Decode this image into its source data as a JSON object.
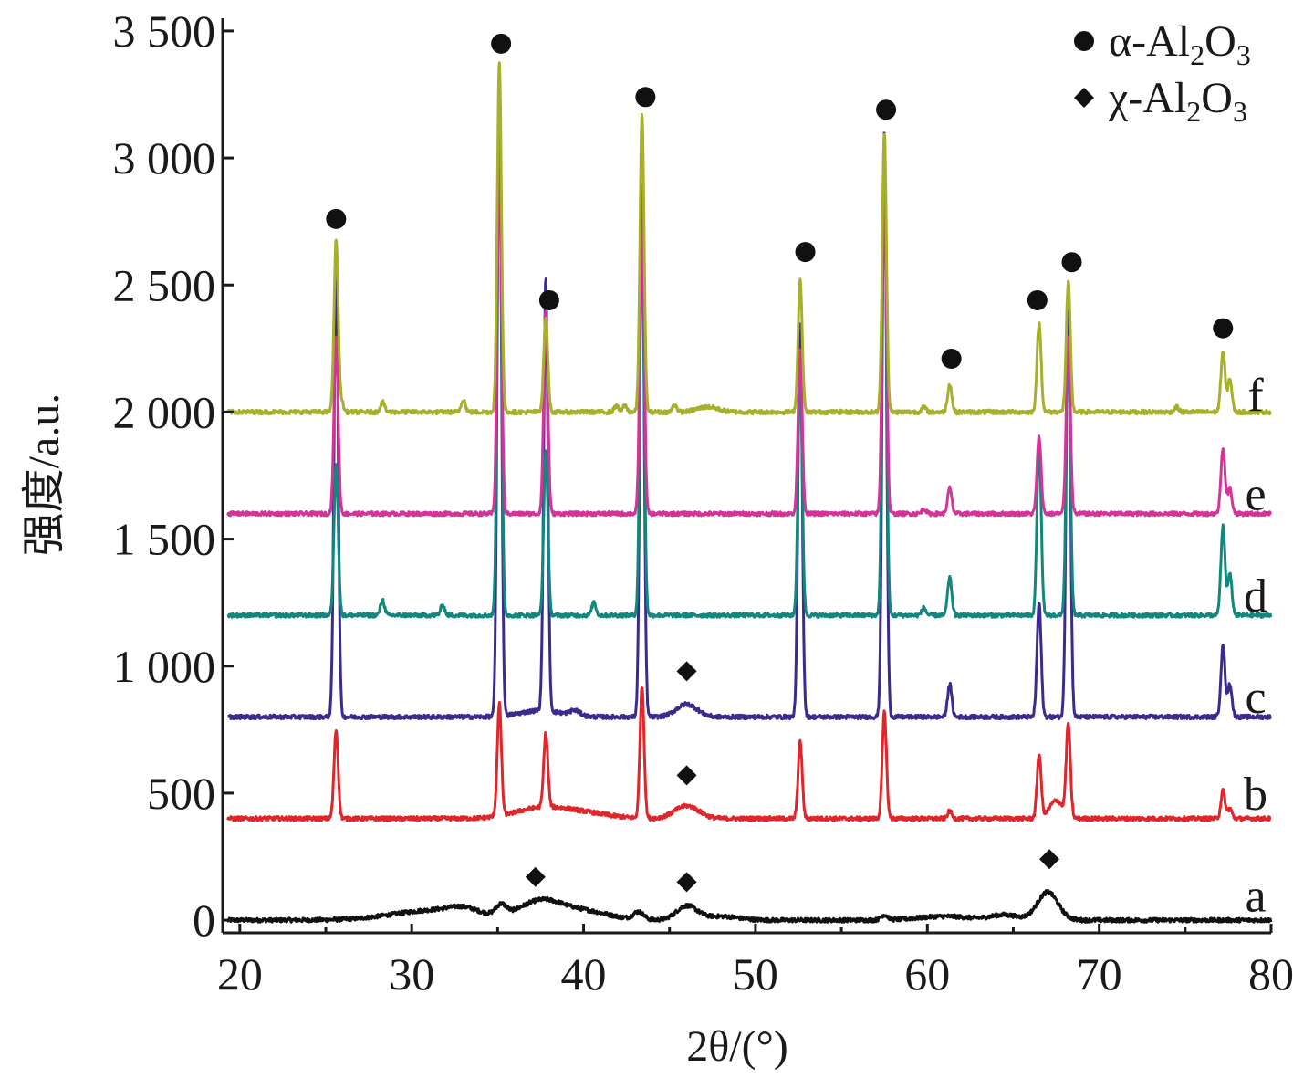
{
  "chart_data": {
    "type": "line",
    "xlabel": "2θ/(°)",
    "ylabel": "强度/a.u.",
    "xlim": [
      19,
      80
    ],
    "ylim": [
      -50,
      3550
    ],
    "x_ticks": [
      20,
      30,
      40,
      50,
      60,
      70,
      80
    ],
    "x_tick_labels": [
      "20",
      "30",
      "40",
      "50",
      "60",
      "70",
      "80"
    ],
    "y_ticks": [
      0,
      500,
      1000,
      1500,
      2000,
      2500,
      3000,
      3500
    ],
    "y_tick_labels": [
      "0",
      "500",
      "1 000",
      "1 500",
      "2 000",
      "2 500",
      "3 000",
      "3 500"
    ],
    "grid": false,
    "legend": {
      "placement": "top-right",
      "entries": [
        {
          "marker": "circle",
          "label_main": "α-Al",
          "label_sub": "2",
          "label_mid": "O",
          "label_sub2": "3"
        },
        {
          "marker": "diamond",
          "label_main": "χ-Al",
          "label_sub": "2",
          "label_mid": "O",
          "label_sub2": "3"
        }
      ]
    },
    "series": [
      {
        "name": "a",
        "color": "#111111",
        "baseline": 0,
        "label_y": 100,
        "peaks": [
          [
            31.5,
            40,
            2.5
          ],
          [
            33,
            20,
            0.8
          ],
          [
            35.2,
            40,
            0.3
          ],
          [
            37.5,
            70,
            1.2
          ],
          [
            40,
            35,
            1.5
          ],
          [
            43.2,
            30,
            0.3
          ],
          [
            46,
            55,
            0.6
          ],
          [
            48,
            15,
            1
          ],
          [
            57.5,
            20,
            0.2
          ],
          [
            61,
            15,
            1.5
          ],
          [
            64.5,
            20,
            0.8
          ],
          [
            67,
            110,
            0.6
          ]
        ]
      },
      {
        "name": "b",
        "color": "#e0262a",
        "baseline": 400,
        "label_y": 500,
        "peaks": [
          [
            25.6,
            350,
            0.12
          ],
          [
            35.1,
            440,
            0.12
          ],
          [
            37.8,
            290,
            0.12
          ],
          [
            43.4,
            520,
            0.12
          ],
          [
            52.6,
            300,
            0.12
          ],
          [
            57.5,
            420,
            0.12
          ],
          [
            61.3,
            30,
            0.12
          ],
          [
            66.5,
            250,
            0.12
          ],
          [
            67.5,
            70,
            0.4
          ],
          [
            68.2,
            360,
            0.12
          ],
          [
            77.2,
            110,
            0.12
          ],
          [
            77.6,
            40,
            0.12
          ],
          [
            37.5,
            40,
            1.5
          ],
          [
            46,
            50,
            0.7
          ],
          [
            40,
            20,
            1.5
          ]
        ]
      },
      {
        "name": "c",
        "color": "#3c2b8f",
        "baseline": 800,
        "label_y": 880,
        "peaks": [
          [
            25.6,
            1800,
            0.12
          ],
          [
            35.1,
            2450,
            0.12
          ],
          [
            37.8,
            1700,
            0.12
          ],
          [
            43.4,
            2100,
            0.12
          ],
          [
            52.6,
            1550,
            0.12
          ],
          [
            57.5,
            2300,
            0.12
          ],
          [
            61.3,
            130,
            0.12
          ],
          [
            66.5,
            450,
            0.12
          ],
          [
            68.2,
            1700,
            0.12
          ],
          [
            77.2,
            280,
            0.12
          ],
          [
            77.6,
            130,
            0.12
          ],
          [
            46,
            50,
            0.6
          ],
          [
            37.5,
            25,
            1.2
          ],
          [
            39.5,
            20,
            0.3
          ]
        ]
      },
      {
        "name": "d",
        "color": "#11877d",
        "baseline": 1200,
        "label_y": 1280,
        "peaks": [
          [
            25.6,
            600,
            0.12
          ],
          [
            28.3,
            60,
            0.12
          ],
          [
            31.8,
            40,
            0.12
          ],
          [
            35.1,
            2000,
            0.12
          ],
          [
            37.8,
            650,
            0.12
          ],
          [
            40.6,
            50,
            0.12
          ],
          [
            43.4,
            1600,
            0.12
          ],
          [
            52.6,
            1000,
            0.12
          ],
          [
            57.5,
            1800,
            0.12
          ],
          [
            59.8,
            30,
            0.12
          ],
          [
            61.3,
            150,
            0.12
          ],
          [
            66.5,
            700,
            0.12
          ],
          [
            68.2,
            1100,
            0.12
          ],
          [
            77.2,
            350,
            0.12
          ],
          [
            77.6,
            160,
            0.12
          ]
        ]
      },
      {
        "name": "e",
        "color": "#d4349a",
        "baseline": 1600,
        "label_y": 1680,
        "peaks": [
          [
            25.6,
            700,
            0.12
          ],
          [
            35.1,
            1500,
            0.12
          ],
          [
            37.8,
            800,
            0.12
          ],
          [
            43.4,
            1300,
            0.12
          ],
          [
            52.6,
            650,
            0.12
          ],
          [
            57.5,
            1400,
            0.12
          ],
          [
            59.8,
            20,
            0.12
          ],
          [
            61.3,
            100,
            0.12
          ],
          [
            66.5,
            300,
            0.12
          ],
          [
            68.2,
            700,
            0.12
          ],
          [
            77.2,
            260,
            0.12
          ],
          [
            77.6,
            100,
            0.12
          ]
        ]
      },
      {
        "name": "f",
        "color": "#a6b02a",
        "baseline": 2000,
        "label_y": 2070,
        "peaks": [
          [
            25.6,
            680,
            0.12
          ],
          [
            25.9,
            40,
            0.12
          ],
          [
            28.3,
            40,
            0.12
          ],
          [
            33,
            50,
            0.12
          ],
          [
            35.1,
            1380,
            0.12
          ],
          [
            37.8,
            370,
            0.12
          ],
          [
            41.9,
            25,
            0.12
          ],
          [
            42.4,
            25,
            0.12
          ],
          [
            43.4,
            1170,
            0.12
          ],
          [
            45.3,
            30,
            0.12
          ],
          [
            47.2,
            20,
            0.6
          ],
          [
            52.6,
            520,
            0.12
          ],
          [
            57.5,
            1100,
            0.12
          ],
          [
            59.8,
            20,
            0.12
          ],
          [
            61.3,
            110,
            0.12
          ],
          [
            66.5,
            350,
            0.12
          ],
          [
            68.2,
            510,
            0.12
          ],
          [
            74.5,
            20,
            0.12
          ],
          [
            77.2,
            240,
            0.12
          ],
          [
            77.6,
            130,
            0.12
          ]
        ]
      }
    ],
    "annotations": {
      "circles": [
        [
          25.6,
          2760
        ],
        [
          35.2,
          3450
        ],
        [
          38,
          2440
        ],
        [
          43.6,
          3240
        ],
        [
          52.9,
          2630
        ],
        [
          57.6,
          3190
        ],
        [
          61.4,
          2210
        ],
        [
          66.4,
          2440
        ],
        [
          68.4,
          2590
        ],
        [
          77.2,
          2330
        ]
      ],
      "diamonds": [
        [
          46,
          980
        ],
        [
          46,
          570
        ],
        [
          37.2,
          170
        ],
        [
          46,
          150
        ],
        [
          67.1,
          240
        ]
      ]
    }
  }
}
